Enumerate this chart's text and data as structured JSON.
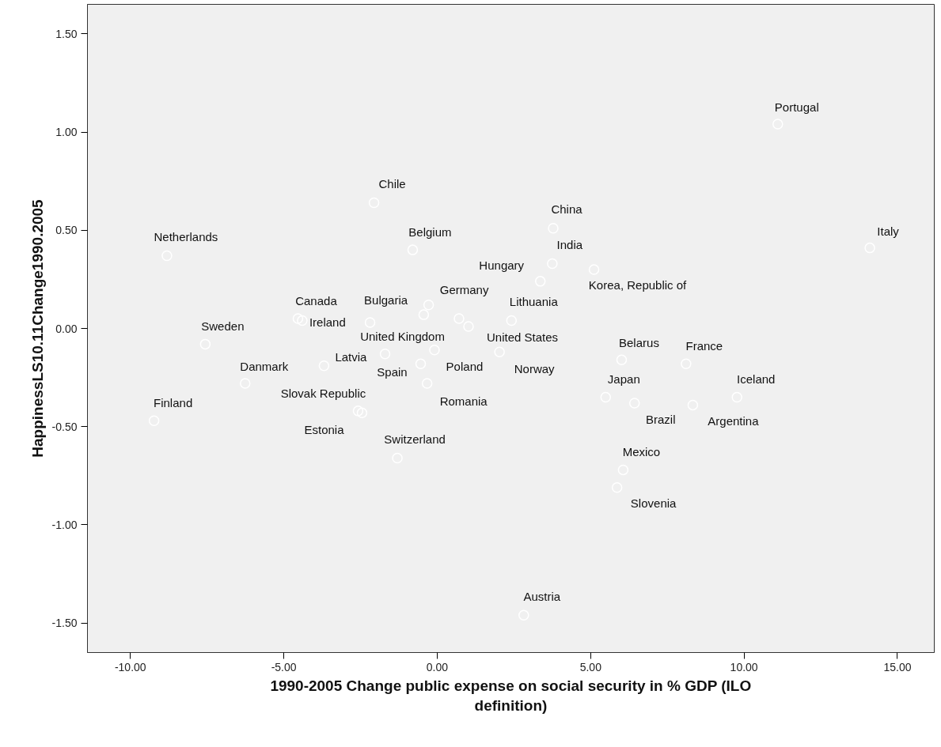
{
  "chart_data": {
    "type": "scatter",
    "xlabel": "1990-2005 Change public expense on social security in % GDP (ILO definition)",
    "ylabel": "HappinessLS10.11Change1990.2005",
    "xlim": [
      -11.4,
      16.2
    ],
    "ylim": [
      -1.65,
      1.65
    ],
    "xticks": [
      {
        "value": -10,
        "label": "-10.00"
      },
      {
        "value": -5,
        "label": "-5.00"
      },
      {
        "value": 0,
        "label": "0.00"
      },
      {
        "value": 5,
        "label": "5.00"
      },
      {
        "value": 10,
        "label": "10.00"
      },
      {
        "value": 15,
        "label": "15.00"
      }
    ],
    "yticks": [
      {
        "value": -1.5,
        "label": "-1.50"
      },
      {
        "value": -1,
        "label": "-1.00"
      },
      {
        "value": -0.5,
        "label": "-0.50"
      },
      {
        "value": 0,
        "label": "0.00"
      },
      {
        "value": 0.5,
        "label": "0.50"
      },
      {
        "value": 1,
        "label": "1.00"
      },
      {
        "value": 1.5,
        "label": "1.50"
      }
    ],
    "grid": false,
    "marker": "circle",
    "series": [
      {
        "color": "#ffffff",
        "x": [
          11.1,
          14.1,
          -2.06,
          3.78,
          -8.81,
          -0.8,
          3.75,
          5.11,
          3.36,
          -0.28,
          -4.54,
          -4.4,
          -2.19,
          2.42,
          -0.44,
          0.71,
          1.02,
          -7.56,
          -1.7,
          -0.09,
          2.03,
          -3.69,
          -0.54,
          -6.26,
          -0.33,
          -2.58,
          -2.45,
          -9.23,
          -1.3,
          6.01,
          8.11,
          5.49,
          6.43,
          8.33,
          9.77,
          6.06,
          5.86,
          2.82
        ],
        "values": [
          1.04,
          0.41,
          0.64,
          0.51,
          0.37,
          0.4,
          0.33,
          0.3,
          0.24,
          0.12,
          0.05,
          0.04,
          0.03,
          0.04,
          0.07,
          0.05,
          0.01,
          -0.08,
          -0.13,
          -0.11,
          -0.12,
          -0.19,
          -0.18,
          -0.28,
          -0.28,
          -0.42,
          -0.43,
          -0.47,
          -0.66,
          -0.16,
          -0.18,
          -0.35,
          -0.38,
          -0.39,
          -0.35,
          -0.72,
          -0.81,
          -1.46
        ],
        "value_labels": [
          "Portugal",
          "Italy",
          "Chile",
          "China",
          "Netherlands",
          "Belgium",
          "India",
          "Korea, Republic of",
          "Hungary",
          "Germany",
          "Canada",
          "Ireland",
          "Bulgaria",
          "Lithuania",
          null,
          null,
          "United States",
          "Sweden",
          "United Kingdom",
          "Poland",
          "Norway",
          "Latvia",
          "Spain",
          "Danmark",
          "Romania",
          "Slovak Republic",
          "Estonia",
          "Finland",
          "Switzerland",
          "Belarus",
          "France",
          "Japan",
          "Brazil",
          "Argentina",
          "Iceland",
          "Mexico",
          "Slovenia",
          "Austria"
        ]
      }
    ]
  }
}
